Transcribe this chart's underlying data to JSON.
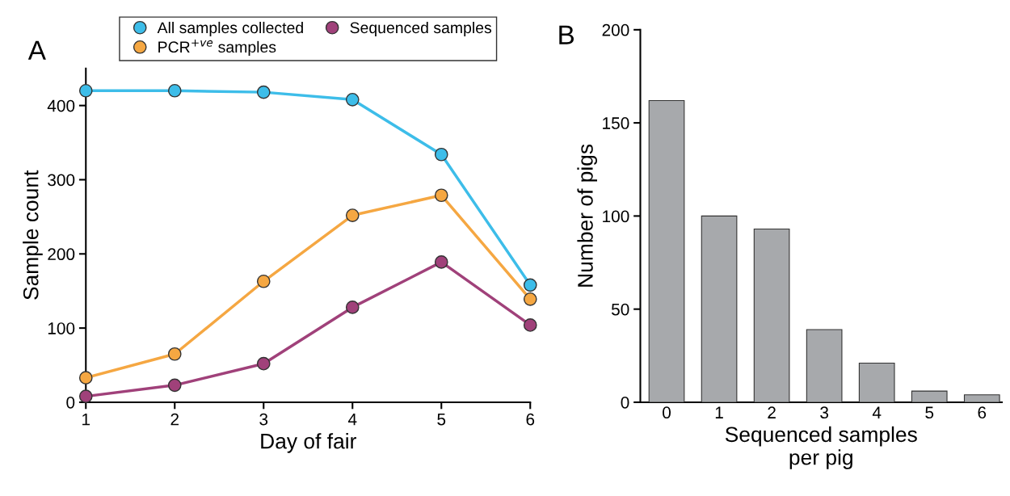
{
  "chart_data": [
    {
      "type": "line",
      "title": "A",
      "xlabel": "Day of fair",
      "ylabel": "Sample count",
      "x": [
        1,
        2,
        3,
        4,
        5,
        6
      ],
      "xlim": [
        1,
        6
      ],
      "xticks": [
        1,
        2,
        3,
        4,
        5,
        6
      ],
      "ylim": [
        0,
        450
      ],
      "yticks": [
        0,
        100,
        200,
        300,
        400
      ],
      "marker": "circle",
      "line_style": "solid",
      "legend": "top",
      "grid": false,
      "series": [
        {
          "name": "All samples collected",
          "color": "#3dbde9",
          "values": [
            420,
            420,
            418,
            408,
            334,
            158
          ]
        },
        {
          "name": "PCR$^{+ve}$ samples",
          "color": "#f5a742",
          "values": [
            33,
            65,
            163,
            252,
            279,
            139
          ]
        },
        {
          "name": "Sequenced samples",
          "color": "#a0417a",
          "values": [
            8,
            23,
            52,
            128,
            189,
            104
          ]
        }
      ]
    },
    {
      "type": "bar",
      "title": "B",
      "xlabel": "Sequenced samples\nper pig",
      "ylabel": "Number of pigs",
      "categories": [
        "0",
        "1",
        "2",
        "3",
        "4",
        "5",
        "6"
      ],
      "values": [
        162,
        100,
        93,
        39,
        21,
        6,
        4
      ],
      "color": "#a7a9ac",
      "ylim": [
        0,
        200
      ],
      "yticks": [
        0,
        50,
        100,
        150,
        200
      ],
      "grid": false
    }
  ]
}
